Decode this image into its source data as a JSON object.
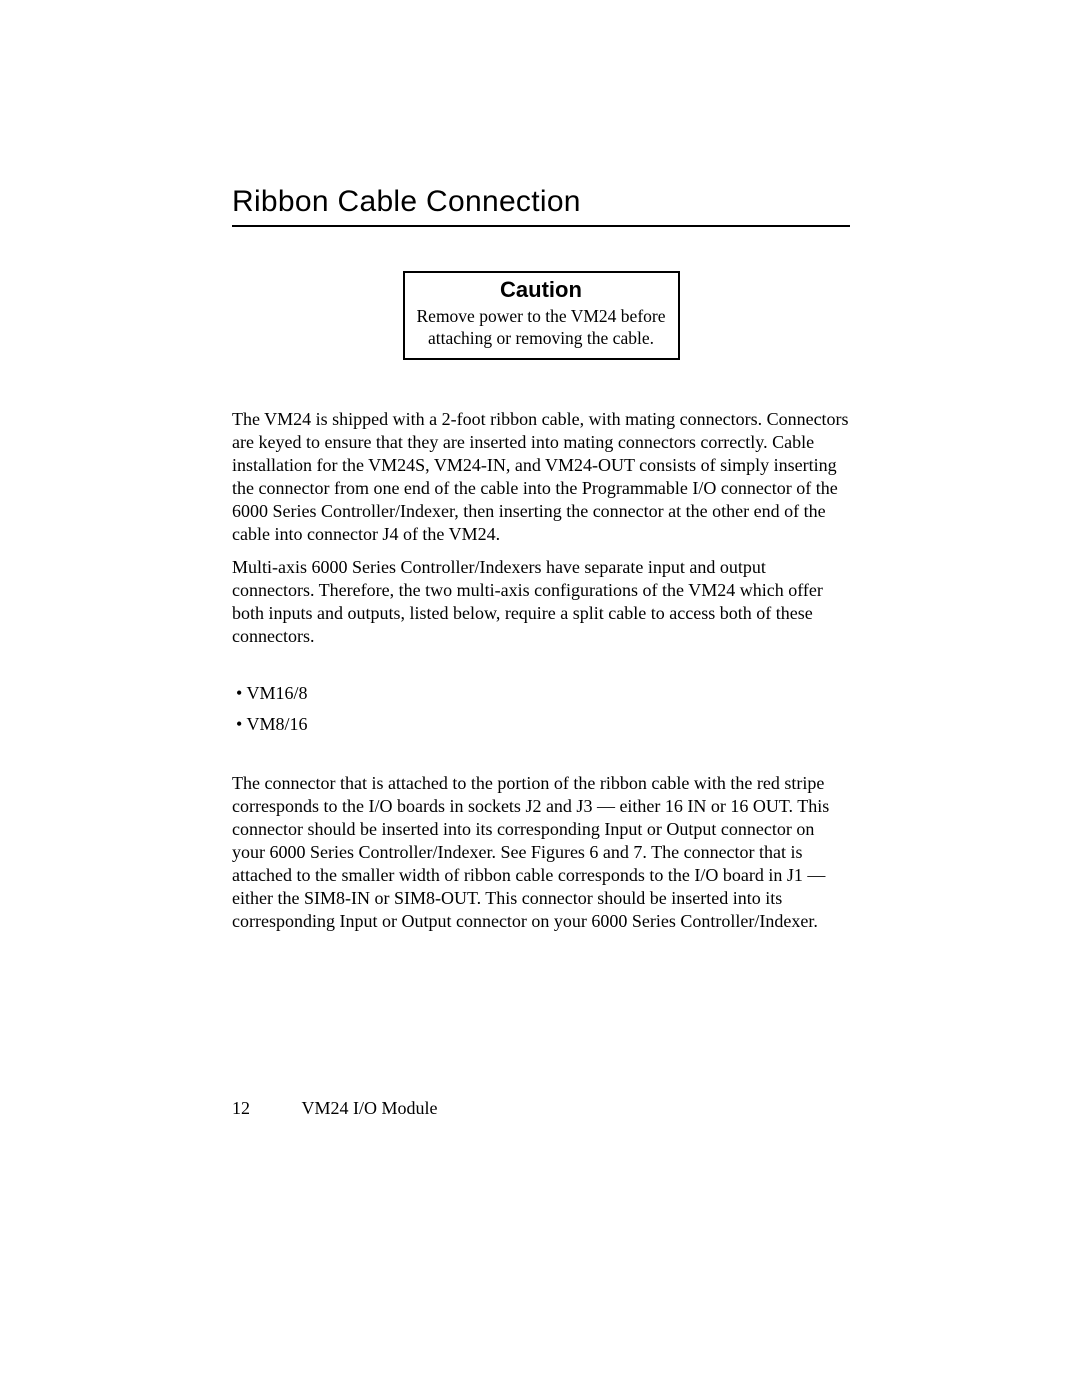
{
  "heading": "Ribbon Cable Connection",
  "caution": {
    "title": "Caution",
    "text": "Remove power to the VM24 before attaching or removing the cable."
  },
  "para1": "The VM24 is shipped with a 2-foot ribbon cable, with mating connectors. Connectors are keyed to ensure that they are inserted into mating connectors correctly.  Cable installation for the VM24S, VM24-IN, and VM24-OUT consists of simply inserting the connector from one end of the cable into the Programmable I/O connector of the 6000 Series Controller/Indexer, then inserting the connector at the other end of the cable into connector J4 of the VM24.",
  "para2": "Multi-axis 6000 Series Controller/Indexers have separate input and output connectors.  Therefore, the two multi-axis configurations of the VM24 which offer both inputs and outputs, listed below, require a split cable to access both of these connectors.",
  "bullets": {
    "item1": "VM16/8",
    "item2": "VM8/16"
  },
  "para3": "The connector that is attached to the portion of the ribbon cable with the red stripe corresponds to the I/O boards in sockets J2 and J3  — either 16 IN or 16 OUT.  This connector should be inserted into its corresponding Input or Output connector on your 6000 Series Controller/Indexer.  See Figures 6 and 7.  The connector that is attached to the smaller width of ribbon cable corresponds to the I/O board in J1 — either the SIM8-IN or SIM8-OUT.  This connector should be inserted into its corresponding Input or Output connector on your 6000 Series Controller/Indexer.",
  "footer": {
    "page_number": "12",
    "doc_title": "VM24 I/O Module"
  }
}
